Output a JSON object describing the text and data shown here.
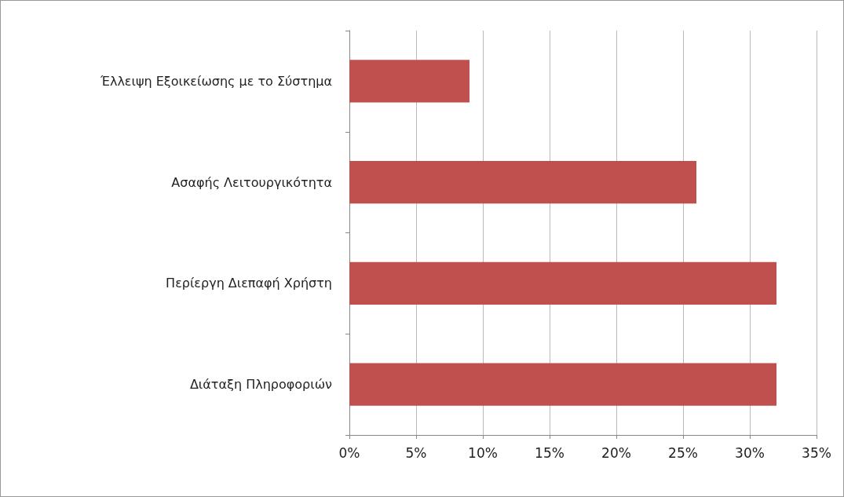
{
  "chart_data": {
    "type": "bar",
    "orientation": "horizontal",
    "categories": [
      "Έλλειψη Εξοικείωσης με το Σύστημα",
      "Ασαφής Λειτουργικότητα",
      "Περίεργη Διεπαφή Χρήστη",
      "Διάταξη Πληροφοριών"
    ],
    "values": [
      9,
      26,
      32,
      32
    ],
    "color": "#c0504d",
    "xlim": [
      0,
      35
    ],
    "xticks": [
      {
        "value": 0,
        "label": "0%"
      },
      {
        "value": 5,
        "label": "5%"
      },
      {
        "value": 10,
        "label": "10%"
      },
      {
        "value": 15,
        "label": "15%"
      },
      {
        "value": 20,
        "label": "20%"
      },
      {
        "value": 25,
        "label": "25%"
      },
      {
        "value": 30,
        "label": "30%"
      },
      {
        "value": 35,
        "label": "35%"
      }
    ],
    "grid": "x"
  }
}
